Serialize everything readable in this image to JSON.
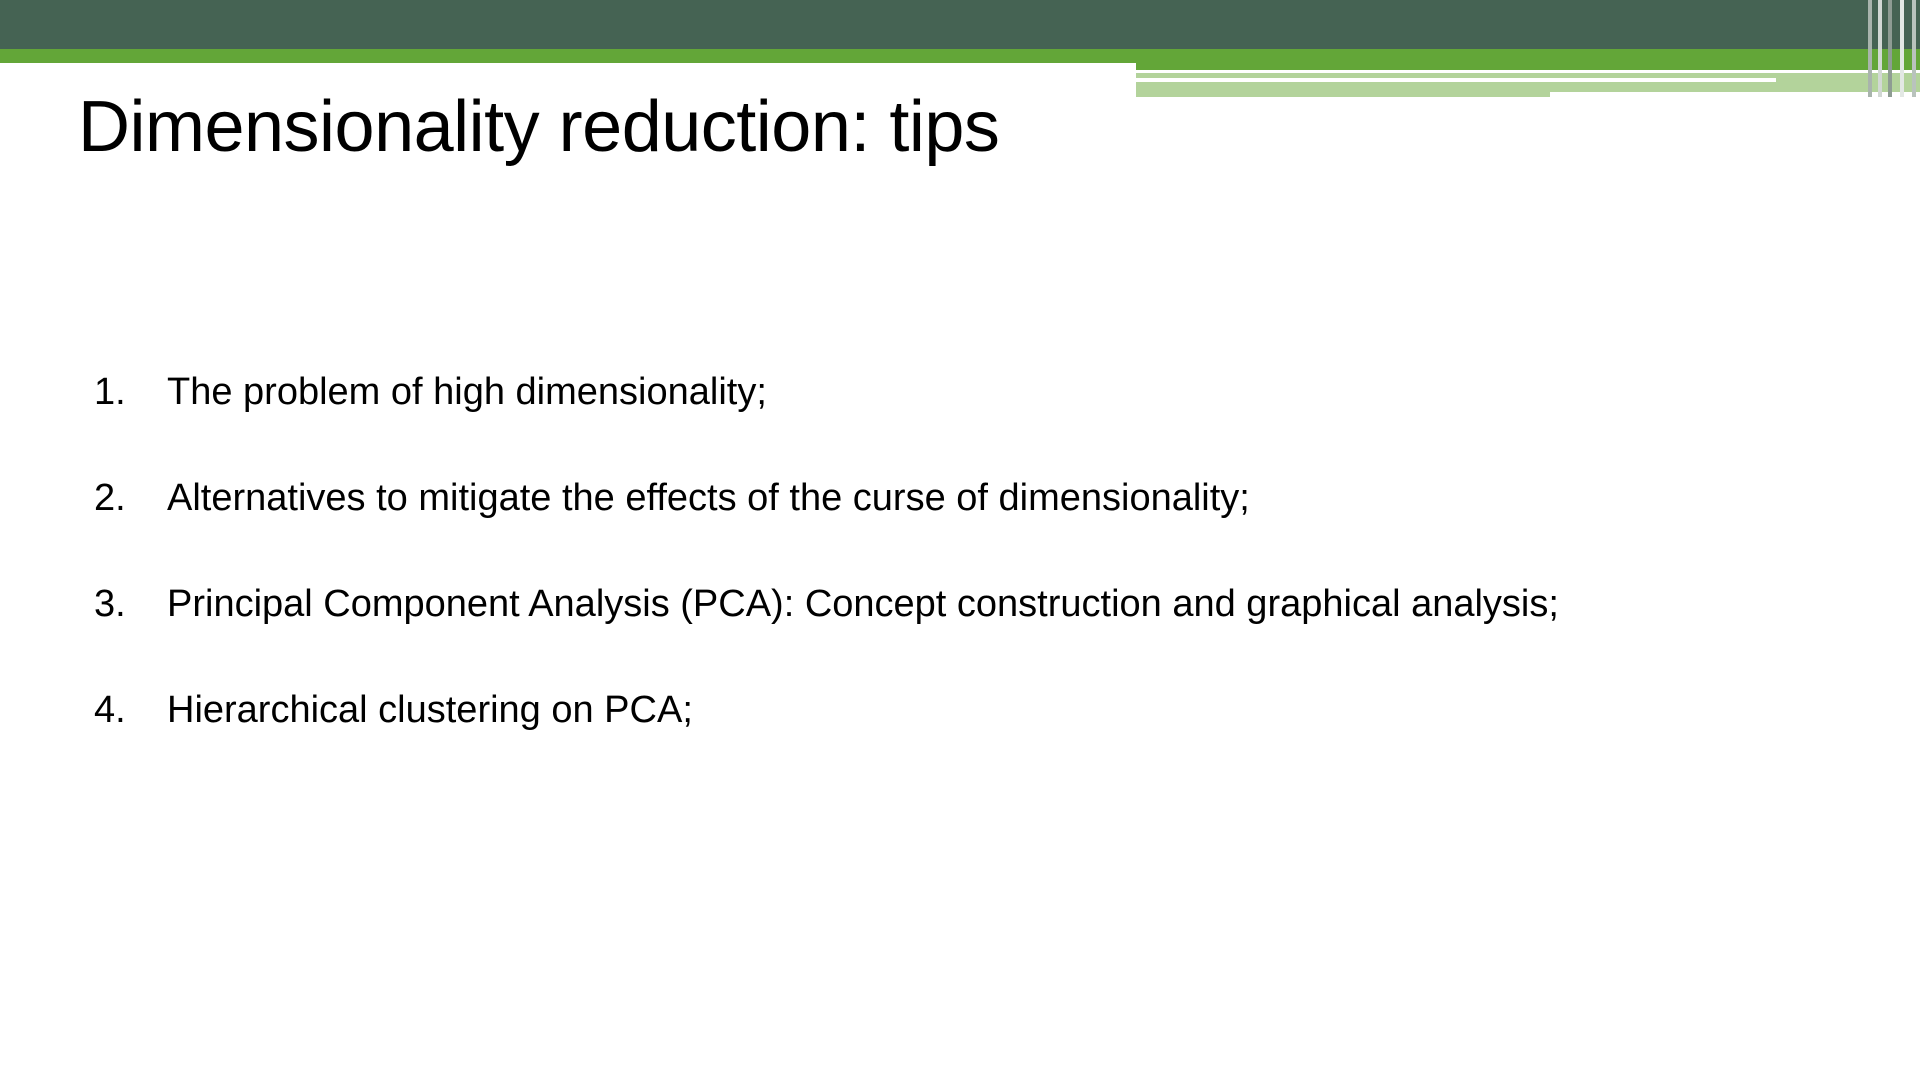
{
  "slide": {
    "title": "Dimensionality reduction: tips",
    "items": [
      {
        "number": "1.",
        "text": "The problem of high dimensionality;"
      },
      {
        "number": "2.",
        "text": "Alternatives to mitigate the effects of the curse of dimensionality;"
      },
      {
        "number": "3.",
        "text": "Principal Component Analysis (PCA): Concept construction and graphical analysis;"
      },
      {
        "number": "4.",
        "text": "Hierarchical clustering on PCA;"
      }
    ]
  },
  "theme": {
    "dark_band": "#456353",
    "green_band": "#63a638",
    "light_green": "#b3d39b",
    "stripe_colors": [
      "#a9b4ad",
      "#d2d8d4",
      "#8e9c93",
      "#e3e8e4",
      "#b9c3bd"
    ]
  }
}
